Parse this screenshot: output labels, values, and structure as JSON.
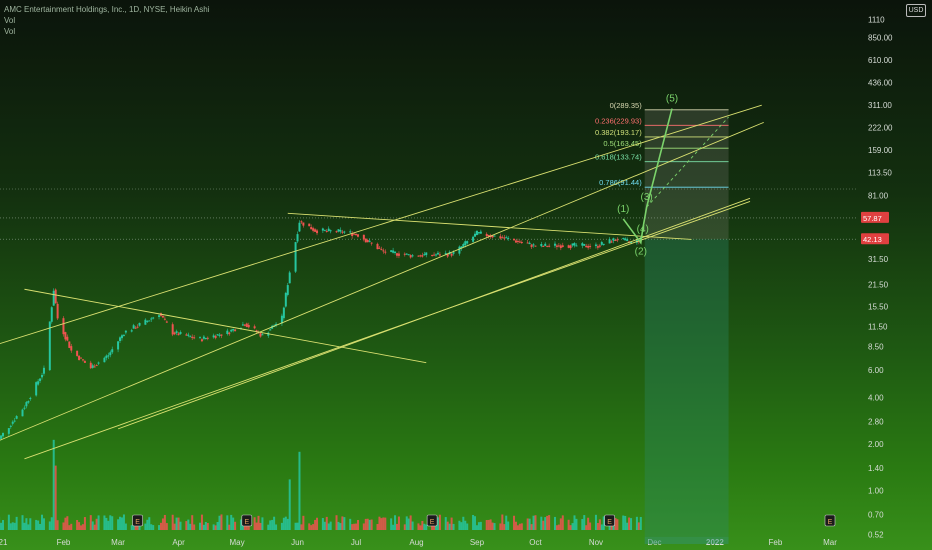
{
  "header": {
    "title": "AMC Entertainment Holdings, Inc., 1D, NYSE, Heikin Ashi",
    "indicator1": "Vol",
    "indicator2": "Vol",
    "badge": "USD"
  },
  "chart_data": {
    "type": "candlestick",
    "scale": "log",
    "ylim": [
      0.45,
      1400
    ],
    "price_axis": [
      "1110",
      "850.00",
      "610.00",
      "436.00",
      "311.00",
      "222.00",
      "159.00",
      "113.50",
      "81.00",
      "57.87",
      "42.50",
      "31.50",
      "21.50",
      "15.50",
      "11.50",
      "8.50",
      "6.00",
      "4.00",
      "2.80",
      "2.00",
      "1.40",
      "1.00",
      "0.70",
      "0.52"
    ],
    "price_labels": [
      {
        "text": "57.87",
        "value": 57.87,
        "color": "#e04040"
      },
      {
        "text": "42.13",
        "value": 42.13,
        "color": "#e04040"
      }
    ],
    "time_axis": [
      {
        "label": "21",
        "date": "2021-01-01"
      },
      {
        "label": "Feb",
        "date": "2021-02-01"
      },
      {
        "label": "Mar",
        "date": "2021-03-01"
      },
      {
        "label": "Apr",
        "date": "2021-04-01"
      },
      {
        "label": "May",
        "date": "2021-05-01"
      },
      {
        "label": "Jun",
        "date": "2021-06-01"
      },
      {
        "label": "Jul",
        "date": "2021-07-01"
      },
      {
        "label": "Aug",
        "date": "2021-08-01"
      },
      {
        "label": "Sep",
        "date": "2021-09-01"
      },
      {
        "label": "Oct",
        "date": "2021-10-01"
      },
      {
        "label": "Nov",
        "date": "2021-11-01"
      },
      {
        "label": "Dec",
        "date": "2021-12-01"
      },
      {
        "label": "2022",
        "date": "2022-01-01"
      },
      {
        "label": "Feb",
        "date": "2022-02-01"
      },
      {
        "label": "Mar",
        "date": "2022-03-01"
      }
    ],
    "price_path": [
      [
        "2020-12-28",
        2.0
      ],
      [
        "2021-01-12",
        3.5
      ],
      [
        "2021-01-22",
        6.0
      ],
      [
        "2021-01-27",
        19.9
      ],
      [
        "2021-01-29",
        13.0
      ],
      [
        "2021-02-05",
        8.0
      ],
      [
        "2021-02-15",
        6.2
      ],
      [
        "2021-02-24",
        7.5
      ],
      [
        "2021-03-04",
        10.5
      ],
      [
        "2021-03-16",
        12.5
      ],
      [
        "2021-03-22",
        14.0
      ],
      [
        "2021-03-29",
        10.5
      ],
      [
        "2021-04-12",
        9.5
      ],
      [
        "2021-04-26",
        10.5
      ],
      [
        "2021-05-05",
        12.0
      ],
      [
        "2021-05-14",
        10.0
      ],
      [
        "2021-05-24",
        13.0
      ],
      [
        "2021-05-28",
        26.0
      ],
      [
        "2021-06-02",
        55.0
      ],
      [
        "2021-06-10",
        48.0
      ],
      [
        "2021-06-25",
        47.0
      ],
      [
        "2021-07-02",
        45.0
      ],
      [
        "2021-07-15",
        35.0
      ],
      [
        "2021-07-30",
        33.0
      ],
      [
        "2021-08-20",
        34.0
      ],
      [
        "2021-09-01",
        46.0
      ],
      [
        "2021-09-15",
        43.0
      ],
      [
        "2021-10-01",
        38.0
      ],
      [
        "2021-10-15",
        38.5
      ],
      [
        "2021-11-01",
        38.0
      ],
      [
        "2021-11-12",
        42.5
      ],
      [
        "2021-11-19",
        40.0
      ],
      [
        "2021-11-24",
        42.0
      ]
    ],
    "volume_spikes": [
      {
        "date": "2021-01-27",
        "level": 0.98
      },
      {
        "date": "2021-01-28",
        "level": 0.7
      },
      {
        "date": "2021-06-02",
        "level": 0.85
      },
      {
        "date": "2021-05-28",
        "level": 0.55
      }
    ],
    "trendlines": [
      {
        "from": [
          "2020-12-20",
          8.1
        ],
        "to": [
          "2022-01-25",
          310
        ]
      },
      {
        "from": [
          "2020-12-28",
          2.05
        ],
        "to": [
          "2022-01-26",
          240
        ]
      },
      {
        "from": [
          "2021-01-12",
          20.0
        ],
        "to": [
          "2021-08-06",
          6.7
        ]
      },
      {
        "from": [
          "2021-05-27",
          62.0
        ],
        "to": [
          "2021-12-20",
          42.0
        ]
      },
      {
        "from": [
          "2021-03-01",
          2.5
        ],
        "to": [
          "2022-01-19",
          77.5
        ]
      },
      {
        "from": [
          "2021-01-12",
          1.6
        ],
        "to": [
          "2022-01-19",
          74.0
        ]
      }
    ],
    "fibonacci": [
      {
        "text": "0(289.35)",
        "value": 289.35,
        "color": "#d8d8b0"
      },
      {
        "text": "0.236(229.93)",
        "value": 229.93,
        "color": "#ff7070"
      },
      {
        "text": "0.382(193.17)",
        "value": 193.17,
        "color": "#cfe07a"
      },
      {
        "text": "0.5(163.45)",
        "value": 163.45,
        "color": "#9fe07a"
      },
      {
        "text": "0.618(133.74)",
        "value": 133.74,
        "color": "#7ae0a6"
      },
      {
        "text": "0.786(91.44)",
        "value": 91.44,
        "color": "#6fdcf0"
      }
    ],
    "waves": [
      {
        "label": "(1)",
        "date": "2021-11-15",
        "value": 57.0
      },
      {
        "label": "(2)",
        "date": "2021-11-24",
        "value": 40.0
      },
      {
        "label": "(3)",
        "date": "2021-11-27",
        "value": 68.0
      },
      {
        "label": "(4)",
        "date": "2021-11-25",
        "value": 49.0
      },
      {
        "label": "(5)",
        "date": "2021-12-10",
        "value": 295.0
      }
    ],
    "earnings_markers": [
      "2021-03-11",
      "2021-05-06",
      "2021-08-09",
      "2021-11-08",
      "2022-03-01"
    ]
  }
}
